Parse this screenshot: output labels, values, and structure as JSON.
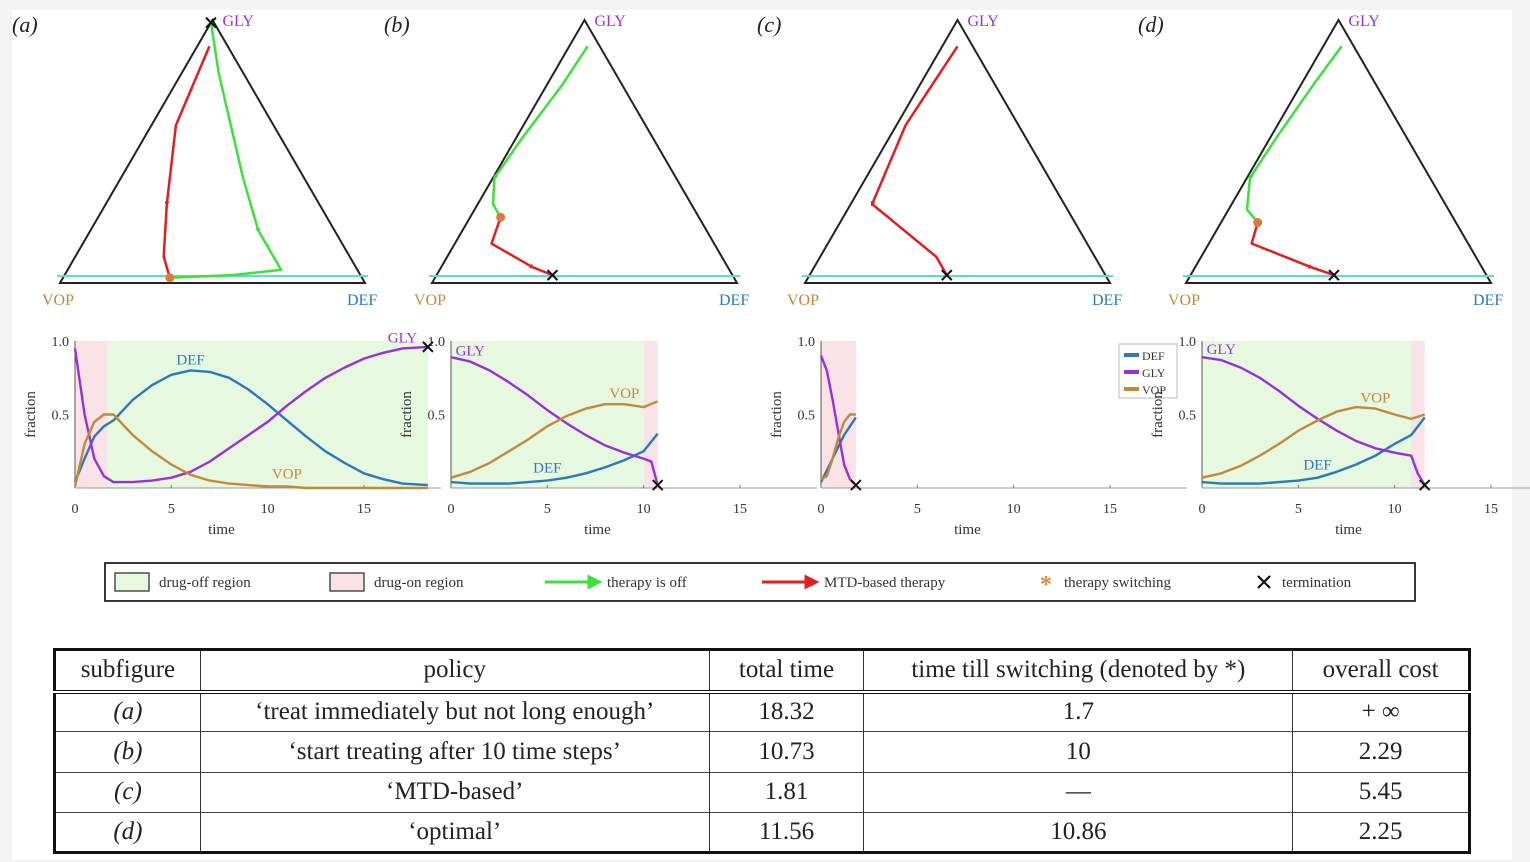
{
  "chart_data": [
    {
      "type": "ternary",
      "panel": "(a)",
      "vertex_labels": {
        "top": "GLY",
        "left": "VOP",
        "right": "DEF"
      },
      "colors": {
        "top": "#9b30d9",
        "left": "#c08a3a",
        "right": "#2a7ab8",
        "off": "#3de03d",
        "on": "#e02020",
        "threshold": "#5ed8e0"
      },
      "trajectory_off": [
        [
          0.99,
          0.0
        ],
        [
          0.8,
          0.12
        ],
        [
          0.6,
          0.26
        ],
        [
          0.4,
          0.4
        ],
        [
          0.2,
          0.55
        ],
        [
          0.05,
          0.7
        ],
        [
          0.03,
          0.55
        ],
        [
          0.02,
          0.35
        ]
      ],
      "trajectory_on": [
        [
          0.9,
          0.04
        ],
        [
          0.6,
          0.08
        ],
        [
          0.3,
          0.2
        ],
        [
          0.1,
          0.29
        ],
        [
          0.02,
          0.35
        ]
      ],
      "switch_point": [
        0.02,
        0.35
      ],
      "termination": [
        0.99,
        0.0
      ]
    },
    {
      "type": "ternary",
      "panel": "(b)",
      "vertex_labels": {
        "top": "GLY",
        "left": "VOP",
        "right": "DEF"
      },
      "trajectory_off": [
        [
          0.9,
          0.06
        ],
        [
          0.75,
          0.05
        ],
        [
          0.55,
          0.02
        ],
        [
          0.4,
          0.005
        ],
        [
          0.3,
          0.05
        ],
        [
          0.25,
          0.1
        ]
      ],
      "trajectory_on": [
        [
          0.25,
          0.1
        ],
        [
          0.15,
          0.12
        ],
        [
          0.06,
          0.3
        ],
        [
          0.03,
          0.38
        ]
      ],
      "switch_point": [
        0.25,
        0.1
      ],
      "termination": [
        0.03,
        0.38
      ]
    },
    {
      "type": "ternary",
      "panel": "(c)",
      "vertex_labels": {
        "top": "GLY",
        "left": "VOP",
        "right": "DEF"
      },
      "trajectory_off": [],
      "trajectory_on": [
        [
          0.9,
          0.05
        ],
        [
          0.6,
          0.03
        ],
        [
          0.3,
          0.07
        ],
        [
          0.1,
          0.38
        ],
        [
          0.03,
          0.45
        ]
      ],
      "switch_point": null,
      "termination": [
        0.03,
        0.45
      ]
    },
    {
      "type": "ternary",
      "panel": "(d)",
      "vertex_labels": {
        "top": "GLY",
        "left": "VOP",
        "right": "DEF"
      },
      "trajectory_off": [
        [
          0.9,
          0.06
        ],
        [
          0.75,
          0.04
        ],
        [
          0.55,
          0.02
        ],
        [
          0.4,
          0.01
        ],
        [
          0.28,
          0.06
        ],
        [
          0.23,
          0.12
        ]
      ],
      "trajectory_on": [
        [
          0.23,
          0.12
        ],
        [
          0.15,
          0.14
        ],
        [
          0.06,
          0.38
        ],
        [
          0.03,
          0.47
        ]
      ],
      "switch_point": [
        0.23,
        0.12
      ],
      "termination": [
        0.03,
        0.47
      ]
    },
    {
      "type": "line",
      "panel": "(a)",
      "xlabel": "time",
      "ylabel": "fraction",
      "xlim": [
        0,
        19
      ],
      "ylim": [
        0,
        1
      ],
      "xticks": [
        0,
        5,
        10,
        15
      ],
      "yticks": [
        0.5,
        1.0
      ],
      "drug_on": [
        [
          0,
          1.7
        ]
      ],
      "drug_off": [
        [
          1.7,
          18.32
        ]
      ],
      "termination": [
        18.32,
        0.96
      ],
      "series": [
        {
          "name": "DEF",
          "x": [
            0,
            0.5,
            1,
            1.5,
            2,
            3,
            4,
            5,
            6,
            7,
            8,
            9,
            10,
            11,
            12,
            13,
            14,
            15,
            16,
            17,
            18.32
          ],
          "y": [
            0.04,
            0.2,
            0.35,
            0.42,
            0.46,
            0.6,
            0.7,
            0.77,
            0.8,
            0.79,
            0.75,
            0.67,
            0.57,
            0.46,
            0.35,
            0.25,
            0.17,
            0.1,
            0.06,
            0.03,
            0.02
          ]
        },
        {
          "name": "GLY",
          "x": [
            0,
            0.5,
            1,
            1.5,
            2,
            3,
            4,
            5,
            6,
            7,
            8,
            9,
            10,
            11,
            12,
            13,
            14,
            15,
            16,
            17,
            18.32
          ],
          "y": [
            0.95,
            0.5,
            0.2,
            0.08,
            0.04,
            0.04,
            0.05,
            0.07,
            0.11,
            0.18,
            0.27,
            0.36,
            0.45,
            0.56,
            0.66,
            0.75,
            0.82,
            0.88,
            0.92,
            0.95,
            0.96
          ]
        },
        {
          "name": "VOP",
          "x": [
            0,
            0.5,
            1,
            1.5,
            2,
            3,
            4,
            5,
            6,
            7,
            8,
            9,
            10,
            11,
            12,
            13,
            14,
            15,
            16,
            17,
            18.32
          ],
          "y": [
            0.01,
            0.3,
            0.45,
            0.5,
            0.5,
            0.36,
            0.25,
            0.16,
            0.09,
            0.05,
            0.03,
            0.02,
            0.01,
            0.01,
            0,
            0,
            0,
            0,
            0,
            0,
            0
          ]
        }
      ]
    },
    {
      "type": "line",
      "panel": "(b)",
      "xlabel": "time",
      "ylabel": "fraction",
      "xlim": [
        0,
        19
      ],
      "ylim": [
        0,
        1
      ],
      "xticks": [
        0,
        5,
        10,
        15
      ],
      "yticks": [
        0.5,
        1.0
      ],
      "drug_off": [
        [
          0,
          10
        ]
      ],
      "drug_on": [
        [
          10,
          10.73
        ]
      ],
      "termination": [
        10.73,
        0.02
      ],
      "series": [
        {
          "name": "DEF",
          "x": [
            0,
            1,
            2,
            3,
            4,
            5,
            6,
            7,
            8,
            9,
            10,
            10.73
          ],
          "y": [
            0.04,
            0.03,
            0.03,
            0.03,
            0.04,
            0.05,
            0.07,
            0.1,
            0.14,
            0.19,
            0.25,
            0.37
          ]
        },
        {
          "name": "GLY",
          "x": [
            0,
            1,
            2,
            3,
            4,
            5,
            6,
            7,
            8,
            9,
            10,
            10.4,
            10.73
          ],
          "y": [
            0.89,
            0.86,
            0.8,
            0.72,
            0.63,
            0.53,
            0.44,
            0.36,
            0.29,
            0.24,
            0.2,
            0.18,
            0.02
          ]
        },
        {
          "name": "VOP",
          "x": [
            0,
            1,
            2,
            3,
            4,
            5,
            6,
            7,
            8,
            9,
            10,
            10.73
          ],
          "y": [
            0.07,
            0.11,
            0.17,
            0.25,
            0.33,
            0.42,
            0.49,
            0.54,
            0.57,
            0.57,
            0.55,
            0.59
          ]
        }
      ]
    },
    {
      "type": "line",
      "panel": "(c)",
      "xlabel": "time",
      "ylabel": "fraction",
      "xlim": [
        0,
        19
      ],
      "ylim": [
        0,
        1
      ],
      "xticks": [
        0,
        5,
        10,
        15
      ],
      "yticks": [
        0.5,
        1.0
      ],
      "drug_on": [
        [
          0,
          1.81
        ]
      ],
      "termination": [
        1.81,
        0.02
      ],
      "legend": {
        "placement": "top-right",
        "entries": [
          "DEF",
          "GLY",
          "VOP"
        ]
      },
      "series": [
        {
          "name": "DEF",
          "x": [
            0,
            0.3,
            0.6,
            0.9,
            1.2,
            1.5,
            1.81
          ],
          "y": [
            0.04,
            0.12,
            0.2,
            0.28,
            0.36,
            0.42,
            0.48
          ]
        },
        {
          "name": "GLY",
          "x": [
            0,
            0.3,
            0.6,
            0.9,
            1.2,
            1.5,
            1.81
          ],
          "y": [
            0.9,
            0.8,
            0.6,
            0.38,
            0.16,
            0.06,
            0.02
          ]
        },
        {
          "name": "VOP",
          "x": [
            0,
            0.3,
            0.6,
            0.9,
            1.2,
            1.5,
            1.81
          ],
          "y": [
            0.06,
            0.08,
            0.2,
            0.34,
            0.45,
            0.5,
            0.5
          ]
        }
      ]
    },
    {
      "type": "line",
      "panel": "(d)",
      "xlabel": "time",
      "ylabel": "fraction",
      "xlim": [
        0,
        19
      ],
      "ylim": [
        0,
        1
      ],
      "xticks": [
        0,
        5,
        10,
        15
      ],
      "yticks": [
        0.5,
        1.0
      ],
      "drug_off": [
        [
          0,
          10.86
        ]
      ],
      "drug_on": [
        [
          10.86,
          11.56
        ]
      ],
      "termination": [
        11.56,
        0.02
      ],
      "series": [
        {
          "name": "DEF",
          "x": [
            0,
            1,
            2,
            3,
            4,
            5,
            6,
            7,
            8,
            9,
            10,
            10.86,
            11.56
          ],
          "y": [
            0.04,
            0.03,
            0.03,
            0.03,
            0.04,
            0.05,
            0.07,
            0.11,
            0.16,
            0.22,
            0.3,
            0.36,
            0.48
          ]
        },
        {
          "name": "GLY",
          "x": [
            0,
            1,
            2,
            3,
            4,
            5,
            6,
            7,
            8,
            9,
            10,
            10.86,
            11.2,
            11.56
          ],
          "y": [
            0.89,
            0.87,
            0.82,
            0.75,
            0.66,
            0.56,
            0.47,
            0.39,
            0.32,
            0.27,
            0.24,
            0.22,
            0.1,
            0.02
          ]
        },
        {
          "name": "VOP",
          "x": [
            0,
            1,
            2,
            3,
            4,
            5,
            6,
            7,
            8,
            9,
            10,
            10.86,
            11.56
          ],
          "y": [
            0.07,
            0.1,
            0.15,
            0.22,
            0.3,
            0.39,
            0.46,
            0.52,
            0.55,
            0.54,
            0.5,
            0.47,
            0.5
          ]
        }
      ]
    }
  ],
  "panels": [
    "(a)",
    "(b)",
    "(c)",
    "(d)"
  ],
  "legend": {
    "items": [
      {
        "label": "drug-off region",
        "kind": "box",
        "color": "#e6f8df"
      },
      {
        "label": "drug-on region",
        "kind": "box",
        "color": "#f9e3e6"
      },
      {
        "label": "therapy is off",
        "kind": "arrow",
        "color": "#3de03d"
      },
      {
        "label": "MTD-based therapy",
        "kind": "arrow",
        "color": "#e02020"
      },
      {
        "label": "therapy switching",
        "kind": "star",
        "color": "#e08a3a"
      },
      {
        "label": "termination",
        "kind": "cross",
        "color": "#111111"
      }
    ]
  },
  "table": {
    "headers": [
      "subfigure",
      "policy",
      "total time",
      "time till switching (denoted by *)",
      "overall cost"
    ],
    "rows": [
      [
        "(a)",
        "‘treat immediately but not long enough’",
        "18.32",
        "1.7",
        "+ ∞"
      ],
      [
        "(b)",
        "‘start treating after 10 time steps’",
        "10.73",
        "10",
        "2.29"
      ],
      [
        "(c)",
        "‘MTD-based’",
        "1.81",
        "—",
        "5.45"
      ],
      [
        "(d)",
        "‘optimal’",
        "11.56",
        "10.86",
        "2.25"
      ]
    ]
  }
}
